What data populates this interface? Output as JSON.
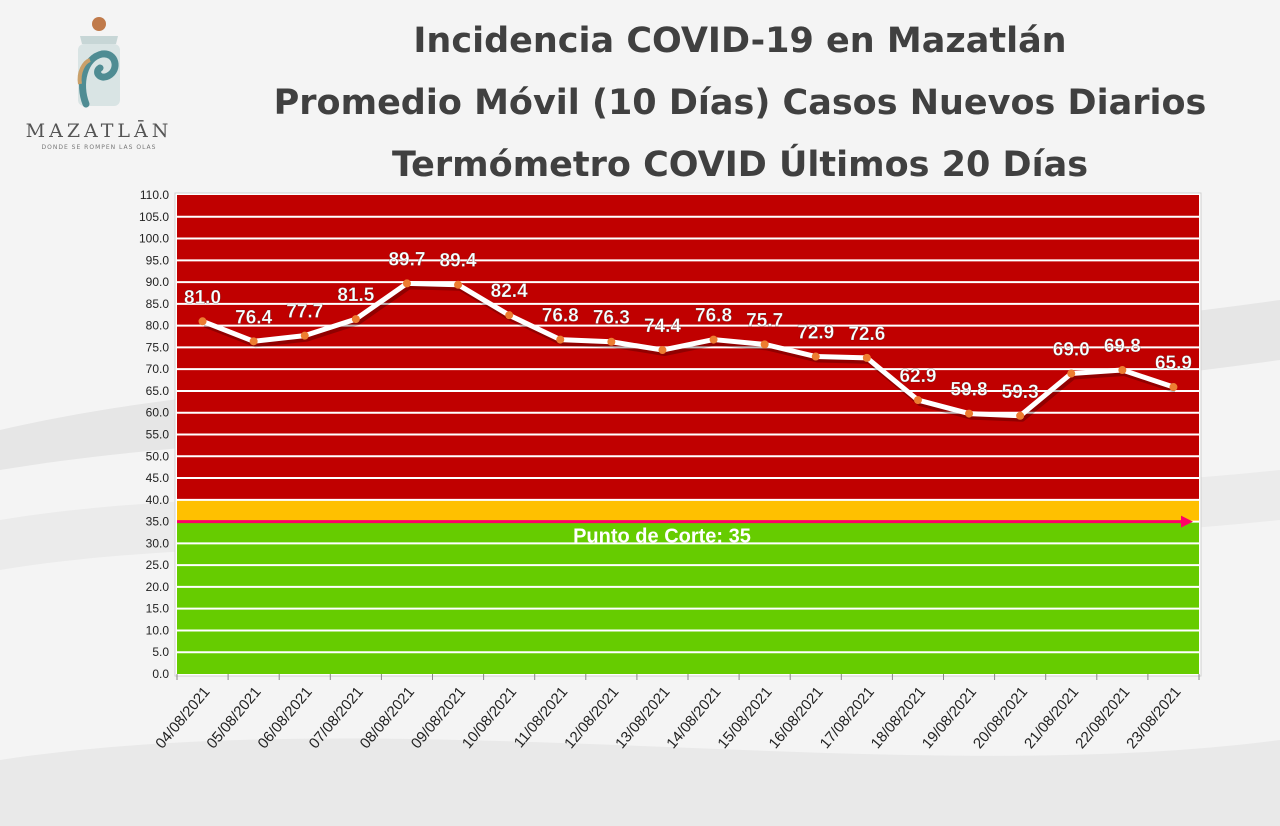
{
  "logo": {
    "wordmark": "MAZATLĀN",
    "tagline": "DONDE SE ROMPEN LAS OLAS"
  },
  "titles": {
    "line1": "Incidencia COVID-19 en Mazatlán",
    "line2": "Promedio Móvil (10 Días) Casos Nuevos Diarios",
    "line3": "Termómetro COVID Últimos 20 Días"
  },
  "chart_data": {
    "type": "line",
    "title": "Termómetro COVID Últimos 20 Días",
    "categories": [
      "04/08/2021",
      "05/08/2021",
      "06/08/2021",
      "07/08/2021",
      "08/08/2021",
      "09/08/2021",
      "10/08/2021",
      "11/08/2021",
      "12/08/2021",
      "13/08/2021",
      "14/08/2021",
      "15/08/2021",
      "16/08/2021",
      "17/08/2021",
      "18/08/2021",
      "19/08/2021",
      "20/08/2021",
      "21/08/2021",
      "22/08/2021",
      "23/08/2021"
    ],
    "values": [
      81.0,
      76.4,
      77.7,
      81.5,
      89.7,
      89.4,
      82.4,
      76.8,
      76.3,
      74.4,
      76.8,
      75.7,
      72.9,
      72.6,
      62.9,
      59.8,
      59.3,
      69.0,
      69.8,
      65.9
    ],
    "ylim": [
      0,
      110
    ],
    "ytick_step": 5,
    "grid": true,
    "bands": [
      {
        "from": 0,
        "to": 35,
        "color": "#66cc00"
      },
      {
        "from": 35,
        "to": 40,
        "color": "#ffc000"
      },
      {
        "from": 40,
        "to": 110,
        "color": "#c00000"
      }
    ],
    "cutoff": {
      "value": 35,
      "label": "Punto de Corte: 35",
      "color": "#ff0066"
    },
    "line_color": "#ffffff",
    "marker_color": "#ed7d31"
  }
}
